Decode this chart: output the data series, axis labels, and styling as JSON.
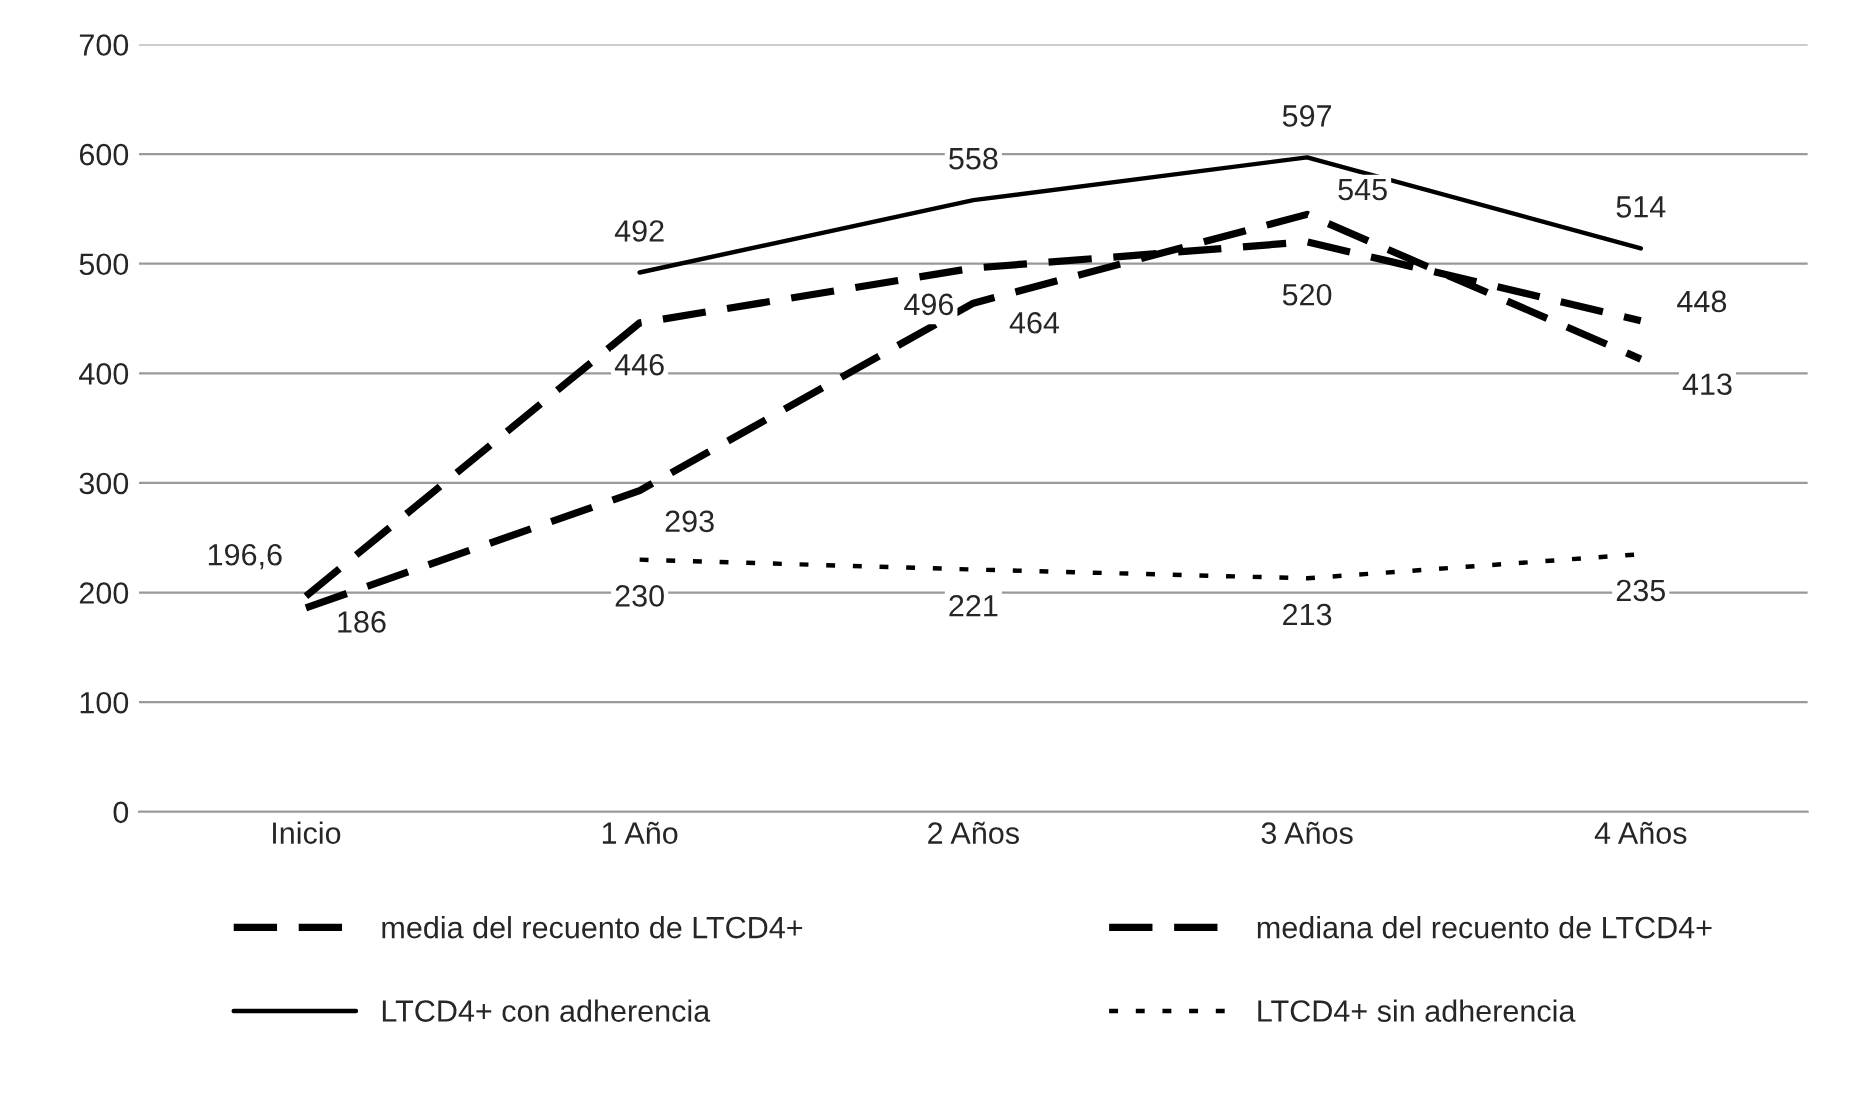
{
  "chart_data": {
    "type": "line",
    "categories": [
      "Inicio",
      "1 Año",
      "2 Años",
      "3 Años",
      "4 Años"
    ],
    "series": [
      {
        "name": "media del recuento de LTCD4+",
        "color": "#000000",
        "line_style": "dashed",
        "values": [
          196.6,
          446,
          496,
          520,
          448
        ],
        "value_labels": [
          "196,6",
          "446",
          "496",
          "520",
          "448"
        ]
      },
      {
        "name": "mediana del recuento de LTCD4+",
        "color": "#000000",
        "line_style": "dashed",
        "values": [
          186,
          293,
          464,
          545,
          413
        ],
        "value_labels": [
          "186",
          "293",
          "464",
          "545",
          "413"
        ]
      },
      {
        "name": "LTCD4+ con adherencia",
        "color": "#000000",
        "line_style": "solid",
        "values": [
          null,
          492,
          558,
          597,
          514
        ],
        "value_labels": [
          null,
          "492",
          "558",
          "597",
          "514"
        ]
      },
      {
        "name": "LTCD4+ sin adherencia",
        "color": "#000000",
        "line_style": "dotted",
        "values": [
          null,
          230,
          221,
          213,
          235
        ],
        "value_labels": [
          null,
          "230",
          "221",
          "213",
          "235"
        ]
      }
    ],
    "ylim": [
      0,
      700
    ],
    "yticks": [
      0,
      100,
      200,
      300,
      400,
      500,
      600,
      700
    ],
    "grid": "y",
    "legend": "bottom",
    "marker": "none"
  }
}
